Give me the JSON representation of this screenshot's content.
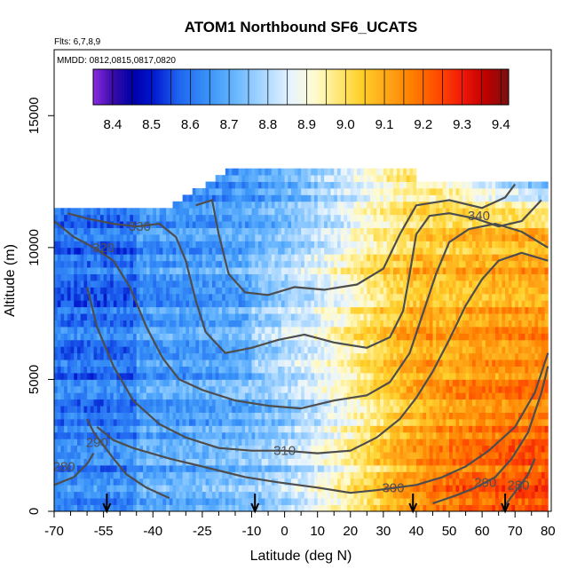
{
  "chart_data": {
    "type": "heatmap",
    "title": "ATOM1 Northbound SF6_UCATS",
    "flights_label": "Flts: 6,7,8,9",
    "dates_label": "MMDD: 0812,0815,0817,0820",
    "xlabel": "Latitude (deg N)",
    "ylabel": "Altitude (m)",
    "xlim": [
      -70,
      81
    ],
    "ylim": [
      0,
      17500
    ],
    "x_ticks": [
      -70,
      -55,
      -40,
      -25,
      -10,
      0,
      10,
      20,
      30,
      40,
      50,
      60,
      70,
      80
    ],
    "x_minor_ticks": [
      -65,
      -60,
      -50,
      -45,
      -35,
      -30,
      -20,
      -15,
      -5,
      5,
      15,
      25,
      35,
      45,
      55,
      65,
      75
    ],
    "y_ticks": [
      0,
      5000,
      10000,
      15000
    ],
    "colorbar": {
      "min": 8.35,
      "max": 9.42,
      "ticks": [
        8.4,
        8.5,
        8.6,
        8.7,
        8.8,
        8.9,
        9.0,
        9.1,
        9.2,
        9.3,
        9.4
      ],
      "stops": [
        {
          "v": 8.35,
          "c": "#8a2be2"
        },
        {
          "v": 8.4,
          "c": "#3a0ca8"
        },
        {
          "v": 8.45,
          "c": "#0000a8"
        },
        {
          "v": 8.5,
          "c": "#0014cc"
        },
        {
          "v": 8.57,
          "c": "#1e64f0"
        },
        {
          "v": 8.65,
          "c": "#3c96f8"
        },
        {
          "v": 8.72,
          "c": "#6cb8ff"
        },
        {
          "v": 8.8,
          "c": "#b4dcff"
        },
        {
          "v": 8.86,
          "c": "#e8f4ff"
        },
        {
          "v": 8.92,
          "c": "#fffbd0"
        },
        {
          "v": 8.98,
          "c": "#ffe878"
        },
        {
          "v": 9.04,
          "c": "#ffd02a"
        },
        {
          "v": 9.1,
          "c": "#ffaa1a"
        },
        {
          "v": 9.17,
          "c": "#ff8000"
        },
        {
          "v": 9.24,
          "c": "#ff4a00"
        },
        {
          "v": 9.3,
          "c": "#f01808"
        },
        {
          "v": 9.36,
          "c": "#c00000"
        },
        {
          "v": 9.42,
          "c": "#7a1010"
        }
      ]
    },
    "field_model": {
      "description": "SF6 mixing ratio field (ppt): low in southern hemisphere, high in northern hemisphere lower troposphere",
      "coverage": {
        "lat_min": -70,
        "lat_max": 80,
        "alt_max_south": 11500,
        "alt_max_mid": 13000,
        "alt_max_north": 12500
      },
      "row_height_m": 250,
      "column_width_deg": 1.0
    },
    "contours": [
      {
        "label": "280",
        "label_pos": [
          -67,
          1700
        ],
        "points": [
          [
            -70,
            1000
          ],
          [
            -64,
            1300
          ],
          [
            -60,
            1800
          ],
          [
            -58,
            2200
          ]
        ]
      },
      {
        "label": "290",
        "label_pos": [
          -57,
          2600
        ],
        "points": [
          [
            -60,
            3500
          ],
          [
            -58,
            3000
          ],
          [
            -55,
            2500
          ],
          [
            -52,
            2000
          ],
          [
            -48,
            1400
          ],
          [
            -42,
            900
          ],
          [
            -35,
            500
          ]
        ]
      },
      {
        "label": "280",
        "label_pos": [
          71,
          1000
        ],
        "points": [
          [
            66,
            0
          ],
          [
            68,
            400
          ],
          [
            71,
            900
          ],
          [
            74,
            1400
          ],
          [
            76,
            2000
          ]
        ]
      },
      {
        "label": "290",
        "label_pos": [
          61,
          1100
        ],
        "points": [
          [
            45,
            300
          ],
          [
            52,
            600
          ],
          [
            58,
            900
          ],
          [
            64,
            1300
          ],
          [
            69,
            2000
          ],
          [
            74,
            3000
          ],
          [
            78,
            4500
          ],
          [
            80,
            5500
          ]
        ]
      },
      {
        "label": "300",
        "label_pos": [
          33,
          900
        ],
        "points": [
          [
            -57,
            3200
          ],
          [
            -52,
            2700
          ],
          [
            -46,
            2400
          ],
          [
            -35,
            2000
          ],
          [
            -25,
            1700
          ],
          [
            -12,
            1300
          ],
          [
            -2,
            1100
          ],
          [
            10,
            900
          ],
          [
            20,
            700
          ],
          [
            28,
            800
          ],
          [
            40,
            1000
          ],
          [
            48,
            1300
          ],
          [
            55,
            1700
          ],
          [
            62,
            2300
          ],
          [
            70,
            3200
          ],
          [
            76,
            4500
          ],
          [
            80,
            6000
          ]
        ]
      },
      {
        "label": "310",
        "label_pos": [
          0,
          2300
        ],
        "points": [
          [
            -60,
            8500
          ],
          [
            -57,
            7000
          ],
          [
            -52,
            5500
          ],
          [
            -46,
            4200
          ],
          [
            -38,
            3300
          ],
          [
            -30,
            2800
          ],
          [
            -20,
            2400
          ],
          [
            -10,
            2300
          ],
          [
            0,
            2300
          ],
          [
            10,
            2200
          ],
          [
            20,
            2300
          ],
          [
            28,
            2800
          ],
          [
            35,
            3500
          ],
          [
            40,
            4300
          ],
          [
            45,
            5300
          ],
          [
            50,
            6500
          ],
          [
            55,
            7800
          ],
          [
            60,
            8800
          ],
          [
            65,
            9500
          ],
          [
            72,
            9800
          ],
          [
            80,
            9500
          ]
        ]
      },
      {
        "label": "320",
        "label_pos": [
          -55,
          10000
        ],
        "points": [
          [
            -70,
            11000
          ],
          [
            -64,
            10400
          ],
          [
            -58,
            10000
          ],
          [
            -52,
            9500
          ],
          [
            -47,
            8500
          ],
          [
            -42,
            7000
          ],
          [
            -37,
            5800
          ],
          [
            -32,
            5000
          ],
          [
            -25,
            4600
          ],
          [
            -15,
            4200
          ],
          [
            -5,
            4000
          ],
          [
            5,
            3900
          ],
          [
            15,
            4200
          ],
          [
            25,
            4400
          ],
          [
            32,
            4900
          ],
          [
            38,
            6000
          ],
          [
            42,
            7500
          ],
          [
            46,
            9000
          ],
          [
            50,
            10200
          ],
          [
            56,
            10700
          ],
          [
            64,
            10900
          ],
          [
            72,
            10600
          ],
          [
            80,
            10000
          ]
        ]
      },
      {
        "label": "330",
        "label_pos": [
          -44,
          10800
        ],
        "points": [
          [
            -66,
            11300
          ],
          [
            -60,
            11100
          ],
          [
            -52,
            10900
          ],
          [
            -45,
            10800
          ],
          [
            -38,
            10900
          ],
          [
            -33,
            10400
          ],
          [
            -30,
            9500
          ],
          [
            -27,
            8000
          ],
          [
            -24,
            6800
          ],
          [
            -18,
            6000
          ],
          [
            -10,
            6200
          ],
          [
            -2,
            6500
          ],
          [
            6,
            6700
          ],
          [
            15,
            6400
          ],
          [
            25,
            6200
          ],
          [
            32,
            6600
          ],
          [
            36,
            7600
          ],
          [
            38,
            9000
          ],
          [
            40,
            10500
          ],
          [
            44,
            11200
          ],
          [
            50,
            11300
          ],
          [
            58,
            11100
          ],
          [
            65,
            10800
          ],
          [
            72,
            11000
          ],
          [
            78,
            11800
          ]
        ]
      },
      {
        "label": "340",
        "label_pos": [
          59,
          11200
        ],
        "points": [
          [
            -27,
            11600
          ],
          [
            -22,
            11800
          ],
          [
            -20,
            10500
          ],
          [
            -17,
            9000
          ],
          [
            -12,
            8300
          ],
          [
            -5,
            8200
          ],
          [
            3,
            8500
          ],
          [
            12,
            8400
          ],
          [
            22,
            8600
          ],
          [
            30,
            9200
          ],
          [
            35,
            10500
          ],
          [
            40,
            11600
          ],
          [
            50,
            11800
          ],
          [
            60,
            11500
          ],
          [
            67,
            11900
          ],
          [
            70,
            12400
          ]
        ]
      }
    ],
    "arrows": {
      "description": "Vertical arrows marking latitude positions along the x axis",
      "latitudes": [
        -54,
        -9,
        39,
        67
      ]
    }
  }
}
